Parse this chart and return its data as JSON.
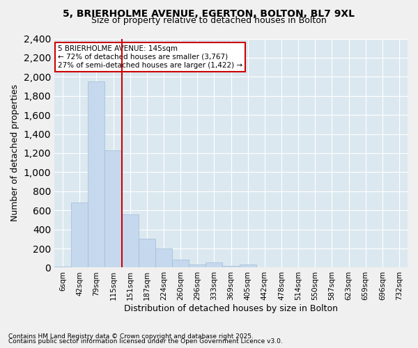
{
  "title1": "5, BRIERHOLME AVENUE, EGERTON, BOLTON, BL7 9XL",
  "title2": "Size of property relative to detached houses in Bolton",
  "xlabel": "Distribution of detached houses by size in Bolton",
  "ylabel": "Number of detached properties",
  "footer1": "Contains HM Land Registry data © Crown copyright and database right 2025.",
  "footer2": "Contains public sector information licensed under the Open Government Licence v3.0.",
  "annotation_line1": "5 BRIERHOLME AVENUE: 145sqm",
  "annotation_line2": "← 72% of detached houses are smaller (3,767)",
  "annotation_line3": "27% of semi-detached houses are larger (1,422) →",
  "bar_color": "#c5d8ed",
  "bar_edge_color": "#a0bcd8",
  "vline_color": "#cc0000",
  "bins": [
    "6sqm",
    "42sqm",
    "79sqm",
    "115sqm",
    "151sqm",
    "187sqm",
    "224sqm",
    "260sqm",
    "296sqm",
    "333sqm",
    "369sqm",
    "405sqm",
    "442sqm",
    "478sqm",
    "514sqm",
    "550sqm",
    "587sqm",
    "623sqm",
    "659sqm",
    "696sqm",
    "732sqm"
  ],
  "values": [
    10,
    680,
    1950,
    1230,
    560,
    300,
    200,
    80,
    35,
    55,
    20,
    30,
    5,
    5,
    0,
    0,
    0,
    0,
    0,
    0,
    0
  ],
  "vline_x_index": 3.5,
  "ylim": [
    0,
    2400
  ],
  "yticks": [
    0,
    200,
    400,
    600,
    800,
    1000,
    1200,
    1400,
    1600,
    1800,
    2000,
    2200,
    2400
  ],
  "grid_color": "#ffffff",
  "bg_color": "#dce8f0",
  "fig_bg_color": "#f0f0f0"
}
